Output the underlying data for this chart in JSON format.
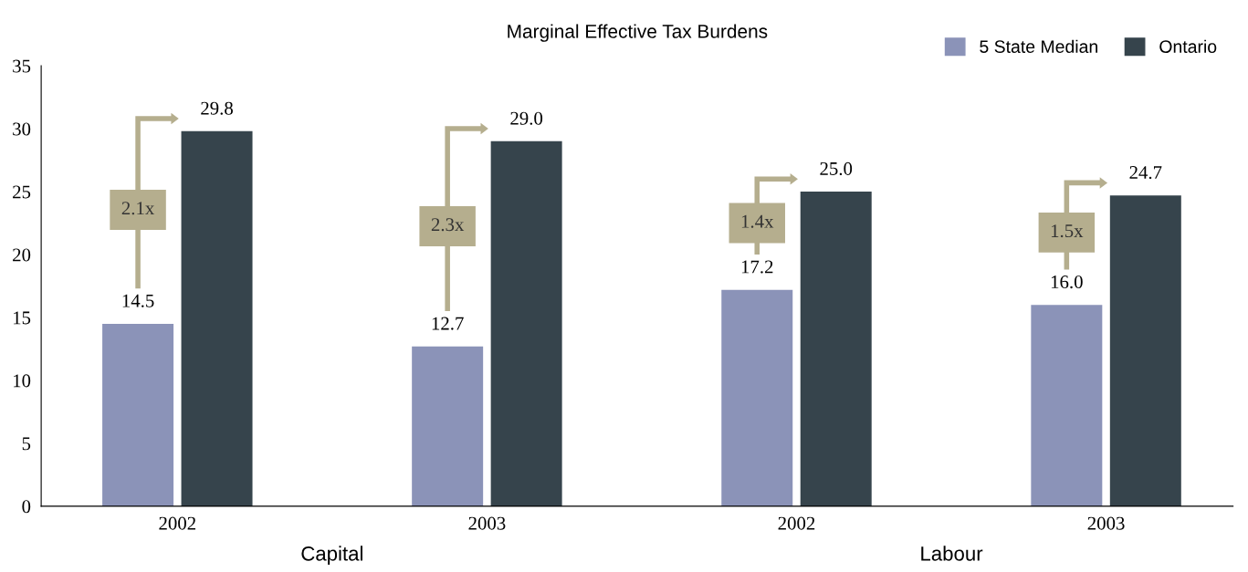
{
  "chart_data": {
    "type": "bar",
    "title": "Marginal Effective Tax Burdens",
    "categories": [
      "2002",
      "2003",
      "2002",
      "2003"
    ],
    "series": [
      {
        "name": "5 State Median",
        "color": "#8b93b8",
        "values": [
          14.5,
          12.7,
          17.2,
          16.0
        ],
        "value_labels": [
          "14.5",
          "12.7",
          "17.2",
          "16.0"
        ]
      },
      {
        "name": "Ontario",
        "color": "#36444c",
        "values": [
          29.8,
          29.0,
          25.0,
          24.7
        ],
        "value_labels": [
          "29.8",
          "29.0",
          "25.0",
          "24.7"
        ]
      }
    ],
    "annotations": [
      "2.1x",
      "2.3x",
      "1.4x",
      "1.5x",
      "Capital",
      "Labour"
    ],
    "ylim": [
      0,
      35
    ],
    "yticks": [
      0,
      5,
      10,
      15,
      20,
      25,
      30,
      35
    ],
    "grid": false,
    "legend": "top right"
  }
}
